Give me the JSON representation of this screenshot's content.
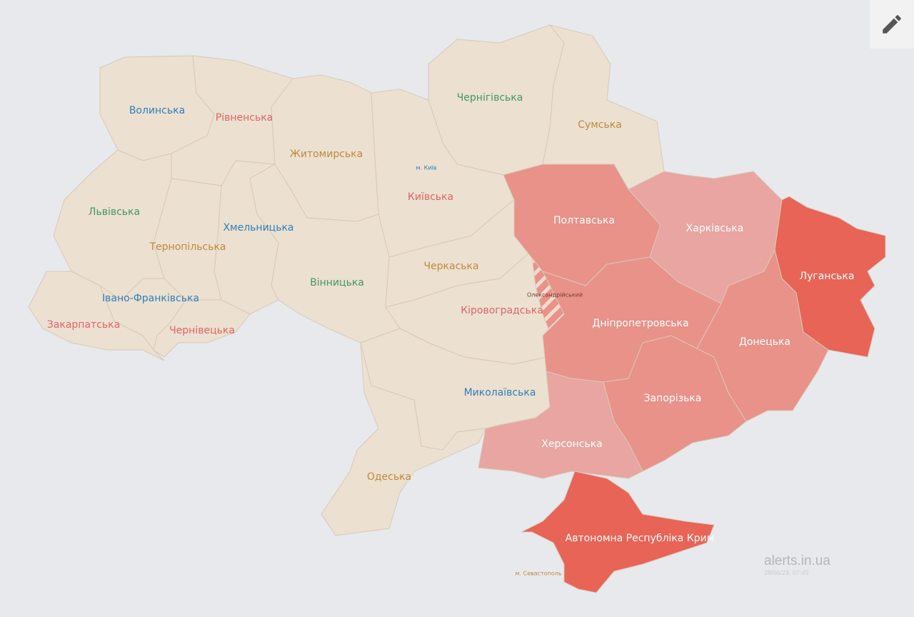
{
  "colors": {
    "background": "#e8e9ec",
    "no_alert": "#ece0d1",
    "alert_high": "#e86456",
    "alert_mid": "#e8928a",
    "alert_low": "#e9a5a1"
  },
  "regions": [
    {
      "id": "volyn",
      "label": "Волинська",
      "status": "none",
      "label_color": "#2f7fb8"
    },
    {
      "id": "rivne",
      "label": "Рівненська",
      "status": "none",
      "label_color": "#e06464"
    },
    {
      "id": "zhytomyr",
      "label": "Житомирська",
      "status": "none",
      "label_color": "#c08a3a"
    },
    {
      "id": "chernihiv",
      "label": "Чернігівська",
      "status": "none",
      "label_color": "#3f9a5a"
    },
    {
      "id": "sumy",
      "label": "Сумська",
      "status": "none",
      "label_color": "#c08a3a"
    },
    {
      "id": "kyiv",
      "label": "Київська",
      "status": "none",
      "label_color": "#e06464"
    },
    {
      "id": "kyiv-city",
      "label": "м. Київ",
      "status": "none",
      "label_color": "#2f7fb8"
    },
    {
      "id": "lviv",
      "label": "Львівська",
      "status": "none",
      "label_color": "#3f9a5a"
    },
    {
      "id": "khmelnytskyi",
      "label": "Хмельницька",
      "status": "none",
      "label_color": "#2f7fb8"
    },
    {
      "id": "ternopil",
      "label": "Тернопільська",
      "status": "none",
      "label_color": "#c08a3a"
    },
    {
      "id": "vinnytsia",
      "label": "Вінницька",
      "status": "none",
      "label_color": "#3f9a5a"
    },
    {
      "id": "cherkasy",
      "label": "Черкаська",
      "status": "none",
      "label_color": "#c08a3a"
    },
    {
      "id": "ivano-frankivsk",
      "label": "Івано-Франківська",
      "status": "none",
      "label_color": "#2f7fb8"
    },
    {
      "id": "zakarpattia",
      "label": "Закарпатська",
      "status": "none",
      "label_color": "#e06464"
    },
    {
      "id": "chernivtsi",
      "label": "Чернівецька",
      "status": "none",
      "label_color": "#e06464"
    },
    {
      "id": "kirovohrad",
      "label": "Кіровоградська",
      "status": "none",
      "label_color": "#e06464"
    },
    {
      "id": "oleksandriia",
      "label": "Олександрійський",
      "status": "district",
      "label_color": "#7a3a30"
    },
    {
      "id": "mykolaiv",
      "label": "Миколаївська",
      "status": "none",
      "label_color": "#2f7fb8"
    },
    {
      "id": "odesa",
      "label": "Одеська",
      "status": "none",
      "label_color": "#c08a3a"
    },
    {
      "id": "poltava",
      "label": "Полтавська",
      "status": "mid",
      "label_color": "#ffffff"
    },
    {
      "id": "kharkiv",
      "label": "Харківська",
      "status": "low",
      "label_color": "#ffffff"
    },
    {
      "id": "luhansk",
      "label": "Луганська",
      "status": "high",
      "label_color": "#ffffff"
    },
    {
      "id": "dnipro",
      "label": "Дніпропетровська",
      "status": "mid",
      "label_color": "#ffffff"
    },
    {
      "id": "donetsk",
      "label": "Донецька",
      "status": "mid",
      "label_color": "#ffffff"
    },
    {
      "id": "zaporizhzhia",
      "label": "Запорізька",
      "status": "mid",
      "label_color": "#ffffff"
    },
    {
      "id": "kherson",
      "label": "Херсонська",
      "status": "low",
      "label_color": "#ffffff"
    },
    {
      "id": "crimea",
      "label": "Автономна Республіка Крим",
      "status": "high",
      "label_color": "#ffffff"
    },
    {
      "id": "sevastopol",
      "label": "м. Севастополь",
      "status": "none",
      "label_color": "#c08a3a"
    }
  ],
  "watermark": {
    "site": "alerts.in.ua",
    "timestamp": "28/06/23, 07:45"
  },
  "edit_button": {
    "icon": "pencil-icon"
  }
}
